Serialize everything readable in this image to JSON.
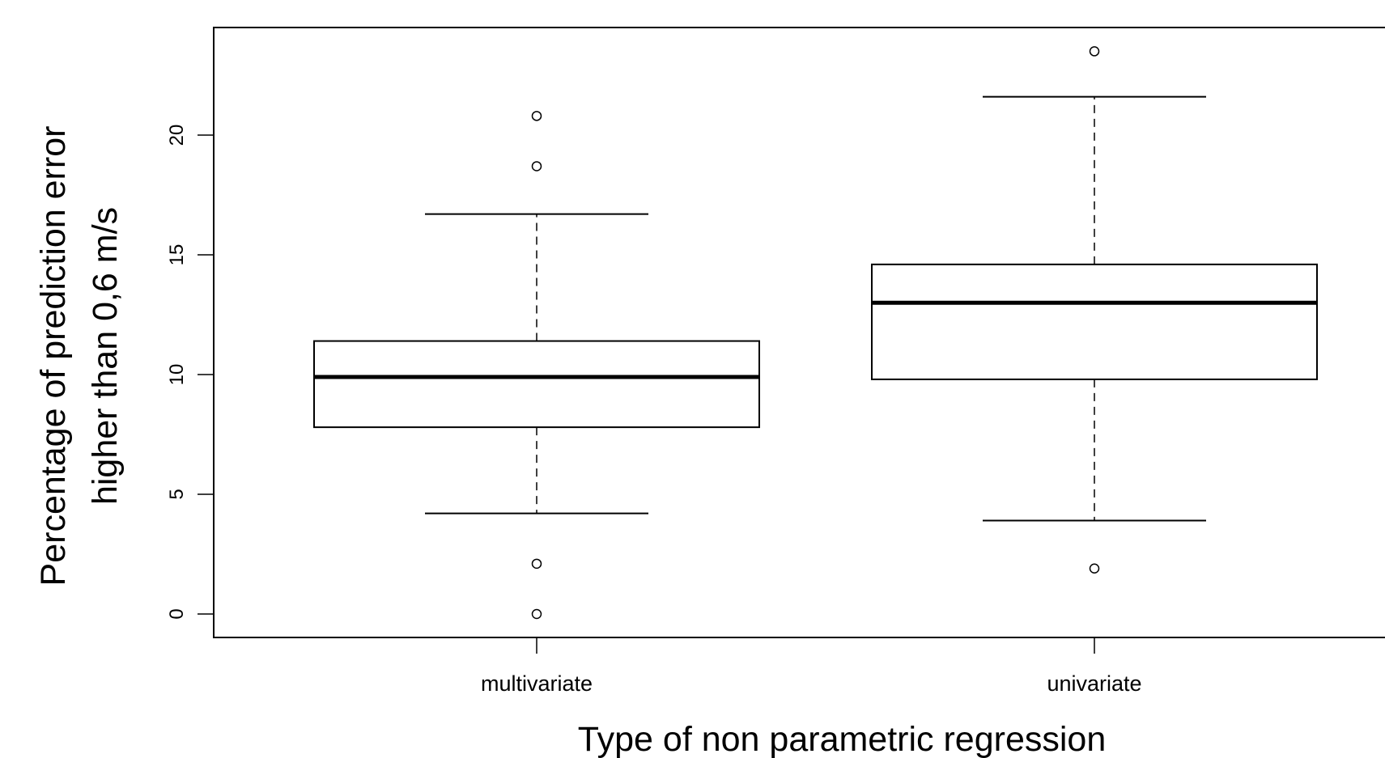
{
  "chart_data": {
    "type": "box",
    "xlabel": "Type of non parametric regression",
    "ylabel_line1": "Percentage of prediction error",
    "ylabel_line2": "higher than 0,6 m/s",
    "ylim": [
      -1,
      24.5
    ],
    "yticks": [
      0,
      5,
      10,
      15,
      20
    ],
    "ytick_labels": [
      "0",
      "5",
      "10",
      "15",
      "20"
    ],
    "grid": false,
    "legend": "none",
    "categories": [
      "multivariate",
      "univariate"
    ],
    "boxes": [
      {
        "category": "multivariate",
        "whisker_low": 4.2,
        "q1": 7.8,
        "median": 9.9,
        "q3": 11.4,
        "whisker_high": 16.7,
        "outliers": [
          0,
          2.1,
          18.7,
          20.8
        ]
      },
      {
        "category": "univariate",
        "whisker_low": 3.9,
        "q1": 9.8,
        "median": 13.0,
        "q3": 14.6,
        "whisker_high": 21.6,
        "outliers": [
          1.9,
          23.5
        ]
      }
    ]
  }
}
